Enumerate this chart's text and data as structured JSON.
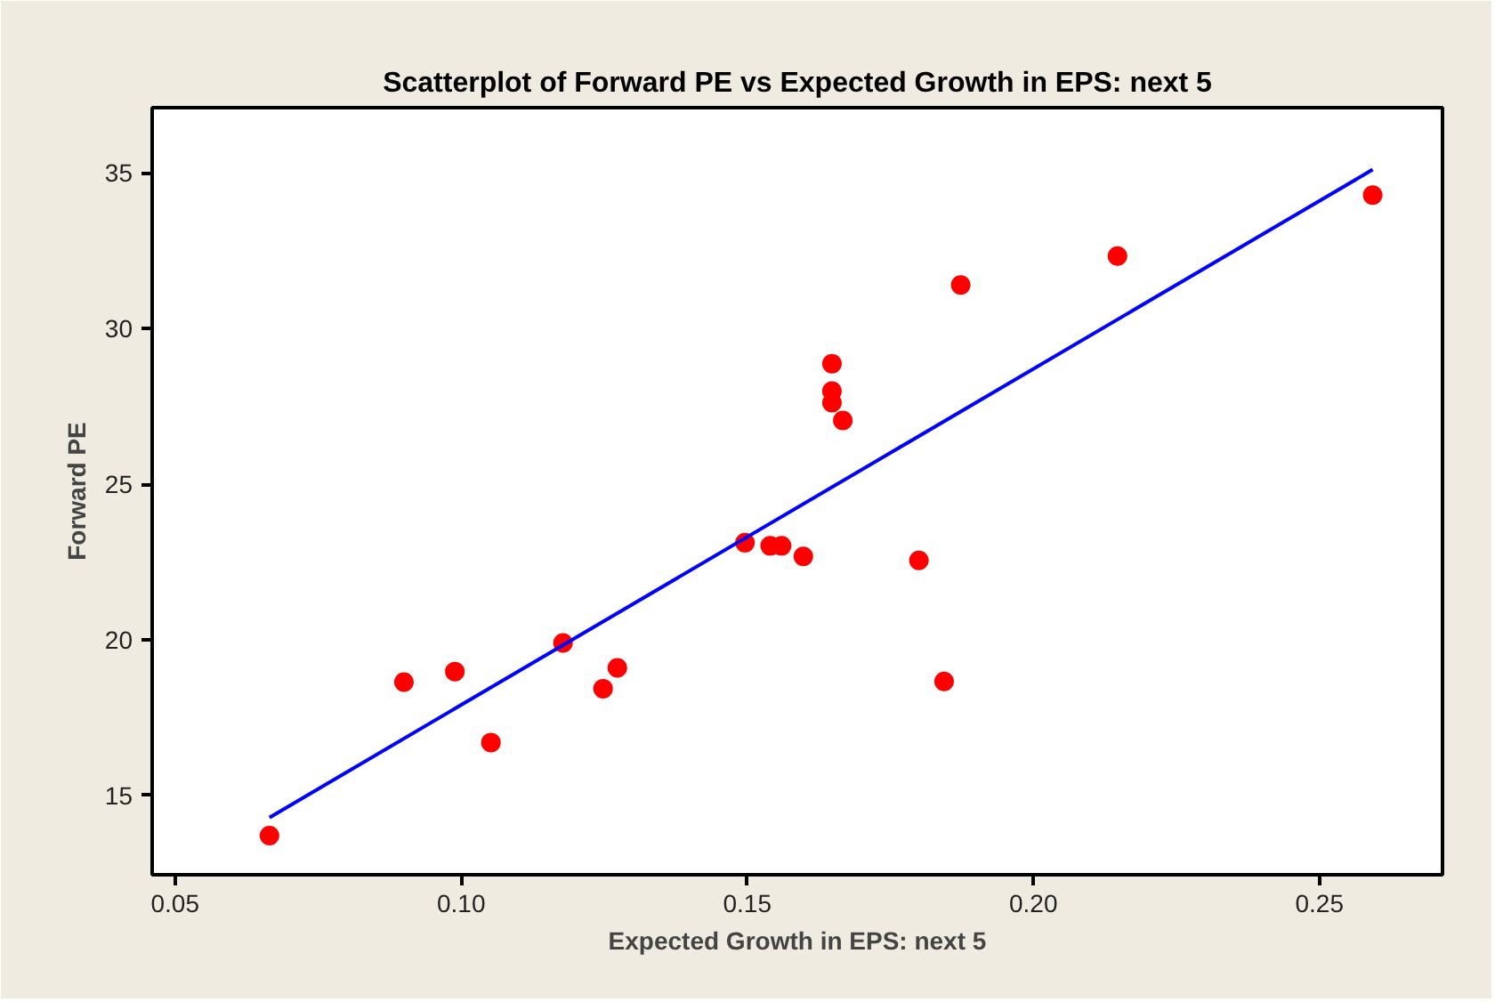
{
  "chart_data": {
    "type": "scatter",
    "title": "Scatterplot of Forward PE vs Expected Growth in EPS: next 5",
    "xlabel": "Expected Growth in EPS: next 5",
    "ylabel": "Forward PE",
    "xlim": [
      0.046,
      0.2715
    ],
    "ylim": [
      12.45,
      37.1
    ],
    "xticks": [
      {
        "value": 0.05,
        "label": "0.05"
      },
      {
        "value": 0.1,
        "label": "0.10"
      },
      {
        "value": 0.15,
        "label": "0.15"
      },
      {
        "value": 0.2,
        "label": "0.20"
      },
      {
        "value": 0.25,
        "label": "0.25"
      }
    ],
    "yticks": [
      15,
      20,
      25,
      30,
      35
    ],
    "grid": false,
    "marker": "circle",
    "series": [
      {
        "color": "#ff0000",
        "x": [
          0.0665,
          0.09,
          0.0989,
          0.1052,
          0.1178,
          0.1248,
          0.1273,
          0.1496,
          0.154,
          0.156,
          0.1598,
          0.1648,
          0.1648,
          0.1648,
          0.1667,
          0.18,
          0.1844,
          0.1873,
          0.2147,
          0.2593
        ],
        "values": [
          13.71,
          18.64,
          18.98,
          16.7,
          19.9,
          18.43,
          19.1,
          23.12,
          23.02,
          23.02,
          22.68,
          28.87,
          27.99,
          27.62,
          27.05,
          22.55,
          18.66,
          31.4,
          32.33,
          34.29
        ]
      },
      {
        "type": "line",
        "color": "#0000ff",
        "marker": "none",
        "x": [
          0.0665,
          0.2593
        ],
        "values": [
          14.29,
          35.11
        ]
      }
    ]
  }
}
